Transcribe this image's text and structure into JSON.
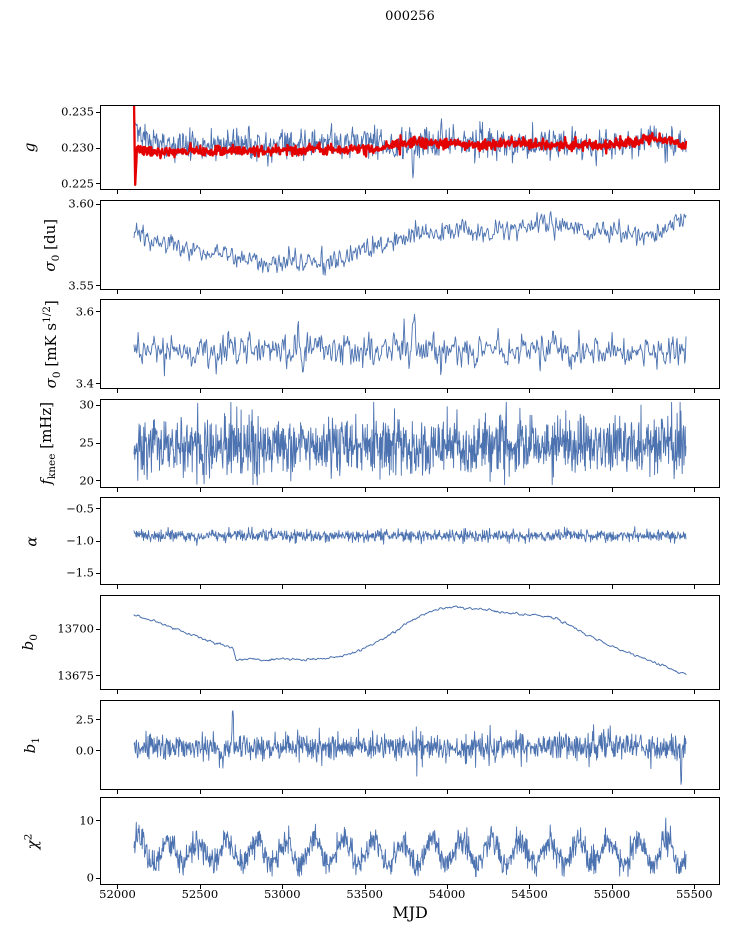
{
  "chart_data": {
    "type": "line",
    "title": "000256",
    "xlabel": "MJD",
    "grid": false,
    "legend": "none",
    "xlim": [
      51900,
      55650
    ],
    "xticks": [
      {
        "v": 52000,
        "l": "52000"
      },
      {
        "v": 52500,
        "l": "52500"
      },
      {
        "v": 53000,
        "l": "53000"
      },
      {
        "v": 53500,
        "l": "53500"
      },
      {
        "v": 54000,
        "l": "54000"
      },
      {
        "v": 54500,
        "l": "54500"
      },
      {
        "v": 55000,
        "l": "55000"
      },
      {
        "v": 55500,
        "l": "55500"
      }
    ],
    "panels": [
      {
        "name": "g",
        "ylabel": [
          {
            "t": "g",
            "i": true
          }
        ],
        "ylim": [
          0.2243,
          0.2359
        ],
        "yticks": [
          {
            "v": 0.235,
            "l": "0.235"
          },
          {
            "v": 0.23,
            "l": "0.230"
          },
          {
            "v": 0.225,
            "l": "0.225"
          }
        ],
        "series": [
          {
            "name": "g-raw",
            "color": "#4c72b0",
            "lw": 0.9,
            "gen": {
              "seed": 11,
              "n": 850,
              "x0": 52100,
              "x1": 55450,
              "trend": [
                [
                  52100,
                  0.2347
                ],
                [
                  52150,
                  0.2316
                ],
                [
                  52250,
                  0.2306
                ],
                [
                  52600,
                  0.2304
                ],
                [
                  53000,
                  0.2305
                ],
                [
                  53400,
                  0.2307
                ],
                [
                  53700,
                  0.2306
                ],
                [
                  54000,
                  0.2309
                ],
                [
                  54300,
                  0.2306
                ],
                [
                  54700,
                  0.2307
                ],
                [
                  55000,
                  0.2304
                ],
                [
                  55250,
                  0.2309
                ],
                [
                  55450,
                  0.2306
                ]
              ],
              "noise": 0.00105,
              "smooth": 1,
              "spikes": [
                [
                  53795,
                  -0.0042,
                  5
                ],
                [
                  53935,
                  -0.0026,
                  4
                ],
                [
                  54060,
                  0.0018,
                  3
                ]
              ]
            }
          },
          {
            "name": "g-binned",
            "color": "#e50000",
            "lw": 2.3,
            "gen": {
              "seed": 7,
              "n": 900,
              "x0": 52100,
              "x1": 55450,
              "trend": [
                [
                  52100,
                  0.2357
                ],
                [
                  52107,
                  0.2247
                ],
                [
                  52118,
                  0.2299
                ],
                [
                  52200,
                  0.2294
                ],
                [
                  52500,
                  0.2296
                ],
                [
                  52900,
                  0.2297
                ],
                [
                  53300,
                  0.2299
                ],
                [
                  53600,
                  0.2301
                ],
                [
                  53800,
                  0.2309
                ],
                [
                  54000,
                  0.2308
                ],
                [
                  54200,
                  0.2304
                ],
                [
                  54450,
                  0.2308
                ],
                [
                  54650,
                  0.2303
                ],
                [
                  54900,
                  0.2304
                ],
                [
                  55100,
                  0.2308
                ],
                [
                  55250,
                  0.2314
                ],
                [
                  55350,
                  0.2312
                ],
                [
                  55450,
                  0.2302
                ]
              ],
              "noise": 0.00038,
              "smooth": 1
            }
          }
        ]
      },
      {
        "name": "sigma0-du",
        "ylabel": [
          {
            "t": "σ",
            "i": true
          },
          {
            "t": "0",
            "sub": true
          },
          {
            "t": " [du]"
          }
        ],
        "ylim": [
          3.548,
          3.602
        ],
        "yticks": [
          {
            "v": 3.6,
            "l": "3.60"
          },
          {
            "v": 3.55,
            "l": "3.55"
          }
        ],
        "series": [
          {
            "name": "sigma0-du",
            "color": "#4c72b0",
            "lw": 0.9,
            "gen": {
              "seed": 21,
              "n": 850,
              "x0": 52100,
              "x1": 55450,
              "trend": [
                [
                  52100,
                  3.585
                ],
                [
                  52200,
                  3.578
                ],
                [
                  52350,
                  3.574
                ],
                [
                  52550,
                  3.57
                ],
                [
                  52750,
                  3.568
                ],
                [
                  52900,
                  3.565
                ],
                [
                  53050,
                  3.562
                ],
                [
                  53150,
                  3.566
                ],
                [
                  53250,
                  3.563
                ],
                [
                  53380,
                  3.567
                ],
                [
                  53500,
                  3.571
                ],
                [
                  53650,
                  3.577
                ],
                [
                  53800,
                  3.582
                ],
                [
                  53950,
                  3.582
                ],
                [
                  54100,
                  3.584
                ],
                [
                  54250,
                  3.583
                ],
                [
                  54400,
                  3.586
                ],
                [
                  54550,
                  3.588
                ],
                [
                  54700,
                  3.587
                ],
                [
                  54850,
                  3.584
                ],
                [
                  55000,
                  3.583
                ],
                [
                  55150,
                  3.581
                ],
                [
                  55300,
                  3.583
                ],
                [
                  55400,
                  3.59
                ],
                [
                  55450,
                  3.592
                ]
              ],
              "noise": 0.0032,
              "smooth": 2
            }
          }
        ]
      },
      {
        "name": "sigma0-mks",
        "ylabel": [
          {
            "t": "σ",
            "i": true
          },
          {
            "t": "0",
            "sub": true
          },
          {
            "t": " [mK s"
          },
          {
            "t": "1/2",
            "sup": true
          },
          {
            "t": "]"
          }
        ],
        "ylim": [
          3.388,
          3.632
        ],
        "yticks": [
          {
            "v": 3.6,
            "l": "3.6"
          },
          {
            "v": 3.4,
            "l": "3.4"
          }
        ],
        "series": [
          {
            "name": "sigma0-mks",
            "color": "#4c72b0",
            "lw": 0.9,
            "gen": {
              "seed": 31,
              "n": 800,
              "x0": 52100,
              "x1": 55450,
              "base": 3.493,
              "noise": 0.022,
              "smooth": 2,
              "spikes": [
                [
                  53800,
                  0.085,
                  8
                ],
                [
                  53120,
                  -0.04,
                  4
                ],
                [
                  54650,
                  0.03,
                  5
                ]
              ]
            }
          }
        ]
      },
      {
        "name": "fknee",
        "ylabel": [
          {
            "t": "f",
            "i": true
          },
          {
            "t": "knee",
            "sub": true
          },
          {
            "t": " [mHz]"
          }
        ],
        "ylim": [
          19.2,
          30.7
        ],
        "yticks": [
          {
            "v": 30,
            "l": "30"
          },
          {
            "v": 25,
            "l": "25"
          },
          {
            "v": 20,
            "l": "20"
          }
        ],
        "series": [
          {
            "name": "fknee",
            "color": "#4c72b0",
            "lw": 0.9,
            "gen": {
              "seed": 41,
              "n": 1300,
              "x0": 52100,
              "x1": 55450,
              "base": 24.7,
              "noise": 2.0,
              "smooth": 1,
              "clamp": [
                19.5,
                30.4
              ]
            }
          }
        ]
      },
      {
        "name": "alpha",
        "ylabel": [
          {
            "t": "α",
            "i": true
          }
        ],
        "ylim": [
          -1.667,
          -0.333
        ],
        "yticks": [
          {
            "v": -0.5,
            "l": "−0.5"
          },
          {
            "v": -1.0,
            "l": "−1.0"
          },
          {
            "v": -1.5,
            "l": "−1.5"
          }
        ],
        "series": [
          {
            "name": "alpha",
            "color": "#4c72b0",
            "lw": 0.9,
            "gen": {
              "seed": 51,
              "n": 1100,
              "x0": 52100,
              "x1": 55450,
              "base": -0.92,
              "noise": 0.045,
              "smooth": 1,
              "spikes": [
                [
                  53050,
                  -0.1,
                  3
                ],
                [
                  54660,
                  0.08,
                  3
                ]
              ]
            }
          }
        ]
      },
      {
        "name": "b0",
        "ylabel": [
          {
            "t": "b",
            "i": true
          },
          {
            "t": "0",
            "sub": true
          }
        ],
        "ylim": [
          13668,
          13718
        ],
        "yticks": [
          {
            "v": 13700,
            "l": "13700"
          },
          {
            "v": 13675,
            "l": "13675"
          }
        ],
        "series": [
          {
            "name": "b0",
            "color": "#4c72b0",
            "lw": 1.0,
            "gen": {
              "seed": 61,
              "n": 700,
              "x0": 52100,
              "x1": 55450,
              "trend": [
                [
                  52100,
                  13708
                ],
                [
                  52250,
                  13703.5
                ],
                [
                  52400,
                  13699
                ],
                [
                  52550,
                  13694
                ],
                [
                  52690,
                  13690
                ],
                [
                  52705,
                  13689.5
                ],
                [
                  52720,
                  13683.5
                ],
                [
                  52800,
                  13684.5
                ],
                [
                  52900,
                  13683.5
                ],
                [
                  53000,
                  13684.5
                ],
                [
                  53120,
                  13683.5
                ],
                [
                  53250,
                  13684.5
                ],
                [
                  53350,
                  13685.5
                ],
                [
                  53450,
                  13688
                ],
                [
                  53550,
                  13692
                ],
                [
                  53650,
                  13697
                ],
                [
                  53750,
                  13703
                ],
                [
                  53850,
                  13708
                ],
                [
                  53950,
                  13711
                ],
                [
                  54050,
                  13712
                ],
                [
                  54150,
                  13711
                ],
                [
                  54250,
                  13710.5
                ],
                [
                  54350,
                  13709
                ],
                [
                  54450,
                  13708
                ],
                [
                  54550,
                  13707.5
                ],
                [
                  54650,
                  13706.5
                ],
                [
                  54750,
                  13702
                ],
                [
                  54850,
                  13697
                ],
                [
                  54950,
                  13693
                ],
                [
                  55050,
                  13689
                ],
                [
                  55150,
                  13686
                ],
                [
                  55250,
                  13682.5
                ],
                [
                  55350,
                  13679
                ],
                [
                  55450,
                  13675.5
                ]
              ],
              "noise": 0.35,
              "smooth": 3
            }
          }
        ]
      },
      {
        "name": "b1",
        "ylabel": [
          {
            "t": "b",
            "i": true
          },
          {
            "t": "1",
            "sub": true
          }
        ],
        "ylim": [
          -3.1,
          4.0
        ],
        "yticks": [
          {
            "v": 2.5,
            "l": "2.5"
          },
          {
            "v": 0.0,
            "l": "0.0"
          }
        ],
        "series": [
          {
            "name": "b1",
            "color": "#4c72b0",
            "lw": 0.9,
            "gen": {
              "seed": 71,
              "n": 1100,
              "x0": 52100,
              "x1": 55450,
              "base": 0.3,
              "noise": 0.55,
              "smooth": 1,
              "spikes": [
                [
                  52700,
                  3.3,
                  3
                ],
                [
                  55420,
                  -2.7,
                  4
                ],
                [
                  52640,
                  -1.3,
                  3
                ]
              ],
              "clamp": [
                -3.0,
                3.8
              ]
            }
          }
        ]
      },
      {
        "name": "chi2",
        "ylabel": [
          {
            "t": "χ",
            "i": true
          },
          {
            "t": "2",
            "sup": true
          }
        ],
        "ylim": [
          -1,
          14
        ],
        "yticks": [
          {
            "v": 10,
            "l": "10"
          },
          {
            "v": 0,
            "l": "0"
          }
        ],
        "series": [
          {
            "name": "chi2",
            "color": "#4c72b0",
            "lw": 0.9,
            "gen": {
              "seed": 81,
              "n": 1200,
              "x0": 52100,
              "x1": 55450,
              "base": 4.6,
              "noise": 1.15,
              "smooth": 1,
              "osc": [
                2.1,
                178,
                0.5
              ],
              "clamp": [
                0.3,
                13
              ]
            }
          }
        ]
      }
    ]
  }
}
